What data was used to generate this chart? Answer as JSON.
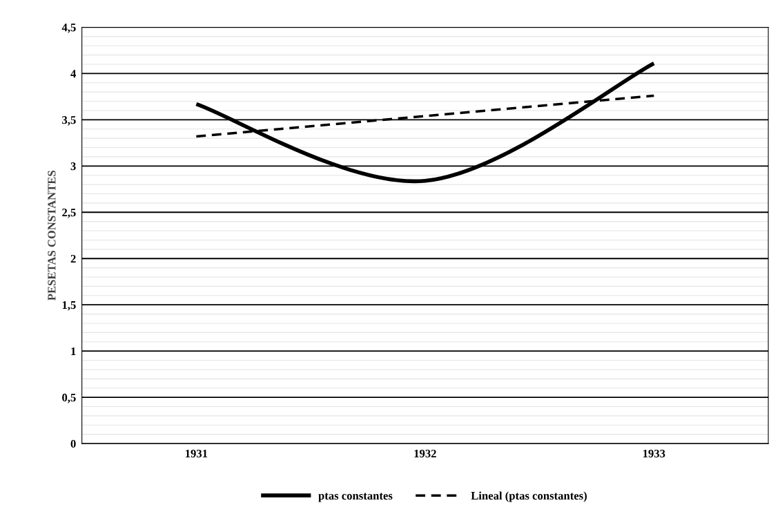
{
  "chart_data": {
    "type": "line",
    "ylabel": "PESETAS CONSTANTES",
    "categories": [
      "1931",
      "1932",
      "1933"
    ],
    "series": [
      {
        "name": "ptas constantes",
        "color": "#000000",
        "values": [
          3.67,
          2.84,
          4.11
        ],
        "line_style": "solid"
      },
      {
        "name": "Lineal (ptas constantes)",
        "color": "#000000",
        "values": [
          3.32,
          3.54,
          3.76
        ],
        "line_style": "dashed"
      }
    ],
    "ylim": [
      0,
      4.5
    ],
    "yticks": [
      {
        "value": 0,
        "label": "0"
      },
      {
        "value": 0.5,
        "label": "0,5"
      },
      {
        "value": 1,
        "label": "1"
      },
      {
        "value": 1.5,
        "label": "1,5"
      },
      {
        "value": 2,
        "label": "2"
      },
      {
        "value": 2.5,
        "label": "2,5"
      },
      {
        "value": 3,
        "label": "3"
      },
      {
        "value": 3.5,
        "label": "3,5"
      },
      {
        "value": 4,
        "label": "4"
      },
      {
        "value": 4.5,
        "label": "4,5"
      }
    ],
    "grid": "y",
    "legend": "bottom",
    "marker": "none"
  }
}
